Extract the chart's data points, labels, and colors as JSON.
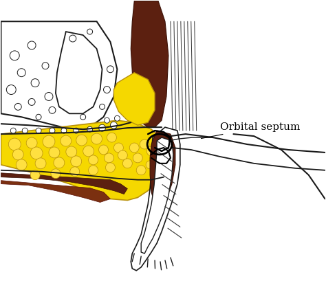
{
  "background_color": "#ffffff",
  "label_text": "Orbital septum",
  "label_fontsize": 11,
  "yellow_color": "#F5D800",
  "yellow_outline": "#B8900A",
  "brown_dark": "#4A1800",
  "brown_medium": "#6B2800",
  "line_color": "#1a1a1a",
  "lw_main": 1.2
}
